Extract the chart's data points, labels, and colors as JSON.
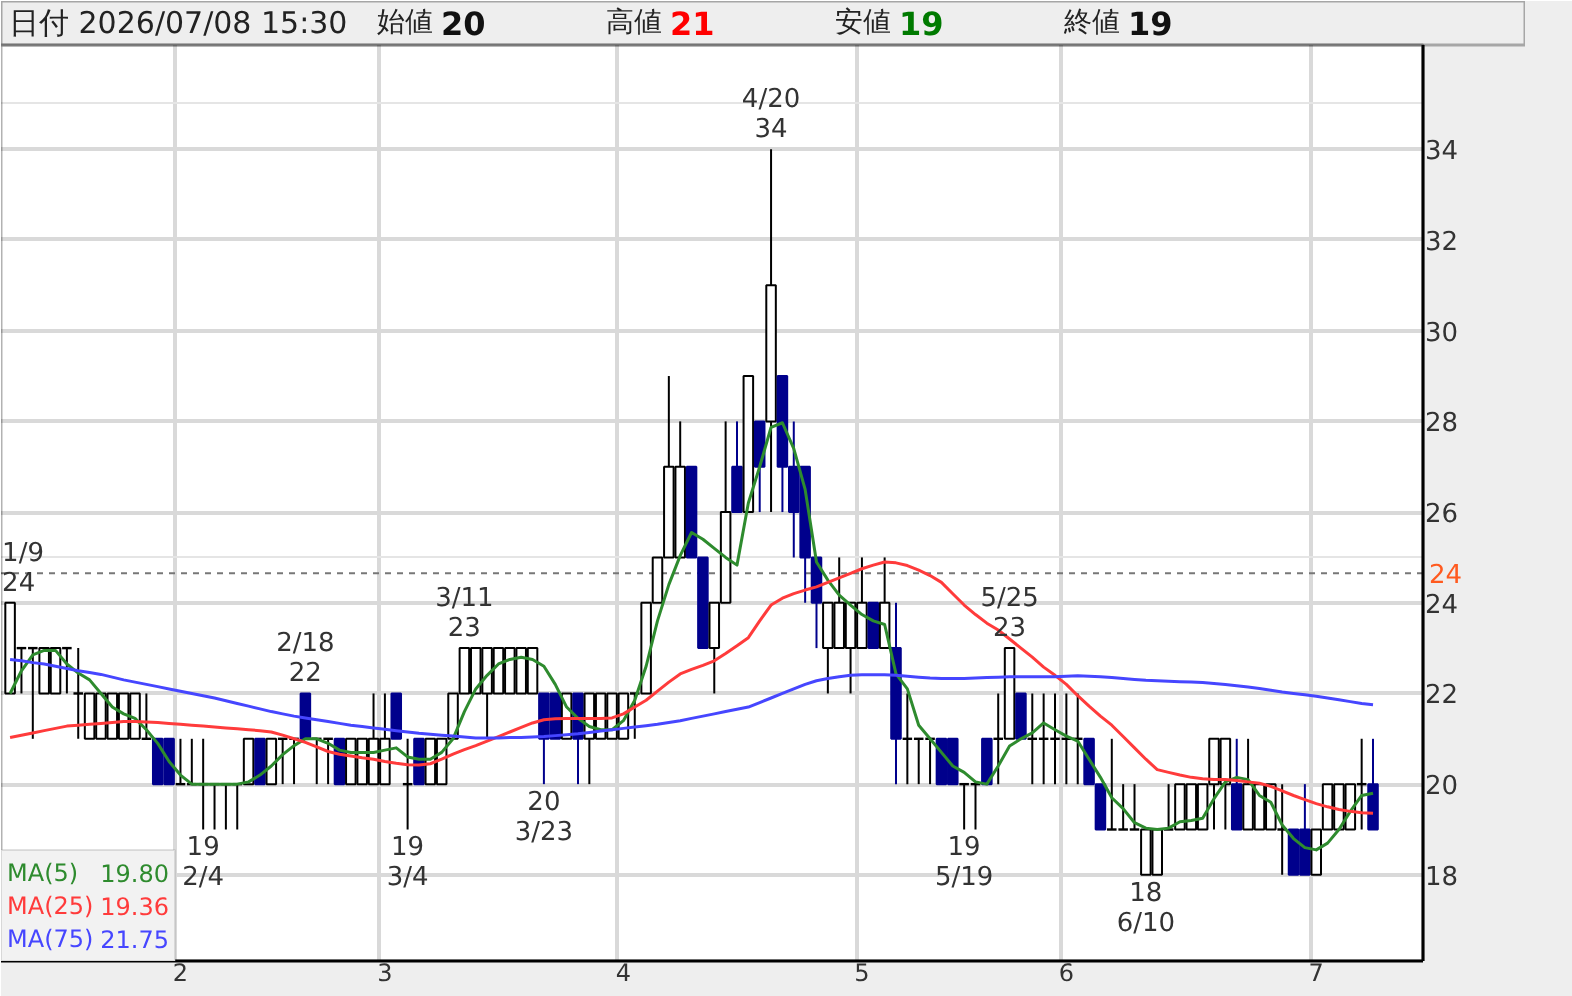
{
  "chart_data": {
    "type": "candlestick",
    "title": "日付 2026/07/08 15:30",
    "categories": [
      null,
      null,
      null,
      null,
      null,
      null,
      null,
      null,
      null,
      null,
      null,
      null,
      null,
      null,
      null,
      "2",
      null,
      null,
      null,
      null,
      null,
      null,
      null,
      null,
      null,
      null,
      null,
      null,
      null,
      null,
      null,
      null,
      null,
      "3",
      null,
      null,
      null,
      null,
      null,
      null,
      null,
      null,
      null,
      null,
      null,
      null,
      null,
      null,
      null,
      null,
      null,
      null,
      null,
      null,
      "4",
      null,
      null,
      null,
      null,
      null,
      null,
      null,
      null,
      null,
      null,
      null,
      null,
      null,
      null,
      null,
      null,
      null,
      null,
      null,
      null,
      "5",
      null,
      null,
      null,
      null,
      null,
      null,
      null,
      null,
      null,
      null,
      null,
      null,
      null,
      null,
      null,
      null,
      null,
      "6",
      null,
      null,
      null,
      null,
      null,
      null,
      null,
      null,
      null,
      null,
      null,
      null,
      null,
      null,
      null,
      null,
      null,
      null,
      null,
      null,
      null,
      "7",
      null,
      null,
      null,
      null,
      null
    ],
    "ohlc": [
      [
        22,
        24,
        22,
        24
      ],
      [
        23,
        23,
        22,
        23
      ],
      [
        23,
        23,
        21,
        23
      ],
      [
        22,
        23,
        22,
        23
      ],
      [
        22,
        23,
        22,
        23
      ],
      [
        23,
        23,
        22,
        23
      ],
      [
        22,
        23,
        21,
        22
      ],
      [
        21,
        22,
        21,
        22
      ],
      [
        21,
        22,
        21,
        22
      ],
      [
        21,
        22,
        21,
        22
      ],
      [
        21,
        22,
        21,
        22
      ],
      [
        21,
        22,
        21,
        22
      ],
      [
        21,
        22,
        21,
        21
      ],
      [
        21,
        21,
        20,
        20
      ],
      [
        21,
        21,
        20,
        20
      ],
      [
        20,
        21,
        20,
        20
      ],
      [
        20,
        21,
        20,
        20
      ],
      [
        20,
        21,
        19,
        20
      ],
      [
        20,
        20,
        19,
        20
      ],
      [
        20,
        20,
        19,
        20
      ],
      [
        20,
        20,
        19,
        20
      ],
      [
        20,
        21,
        20,
        21
      ],
      [
        21,
        21,
        20,
        20
      ],
      [
        20,
        21,
        20,
        21
      ],
      [
        21,
        21,
        20,
        21
      ],
      [
        21,
        21,
        20,
        21
      ],
      [
        22,
        22,
        21,
        21
      ],
      [
        21,
        21,
        20,
        21
      ],
      [
        21,
        21,
        20,
        21
      ],
      [
        21,
        21,
        20,
        20
      ],
      [
        20,
        21,
        20,
        21
      ],
      [
        20,
        21,
        20,
        21
      ],
      [
        20,
        22,
        20,
        21
      ],
      [
        20,
        22,
        20,
        21
      ],
      [
        22,
        22,
        21,
        21
      ],
      [
        20,
        21,
        19,
        20
      ],
      [
        21,
        21,
        20,
        20
      ],
      [
        20,
        21,
        20,
        21
      ],
      [
        20,
        21,
        20,
        21
      ],
      [
        21,
        22,
        21,
        22
      ],
      [
        22,
        23,
        22,
        23
      ],
      [
        22,
        23,
        22,
        23
      ],
      [
        22,
        23,
        21,
        23
      ],
      [
        22,
        23,
        22,
        23
      ],
      [
        22,
        23,
        22,
        23
      ],
      [
        22,
        23,
        22,
        23
      ],
      [
        22,
        23,
        22,
        23
      ],
      [
        22,
        22,
        20,
        21
      ],
      [
        22,
        22,
        21,
        21
      ],
      [
        21,
        22,
        21,
        22
      ],
      [
        22,
        22,
        20,
        21
      ],
      [
        21,
        22,
        20,
        22
      ],
      [
        21,
        22,
        21,
        22
      ],
      [
        21,
        22,
        21,
        22
      ],
      [
        21,
        22,
        21,
        22
      ],
      [
        22,
        22,
        21,
        22
      ],
      [
        22,
        24,
        22,
        24
      ],
      [
        24,
        25,
        24,
        25
      ],
      [
        25,
        29,
        25,
        27
      ],
      [
        25,
        28,
        25,
        27
      ],
      [
        27,
        27,
        25,
        25
      ],
      [
        25,
        25,
        23,
        23
      ],
      [
        23,
        24,
        22,
        24
      ],
      [
        24,
        28,
        24,
        26
      ],
      [
        27,
        28,
        26,
        26
      ],
      [
        26,
        29,
        26,
        29
      ],
      [
        28,
        28,
        26,
        27
      ],
      [
        28,
        34,
        26,
        31
      ],
      [
        29,
        29,
        26,
        27
      ],
      [
        27,
        28,
        25,
        26
      ],
      [
        27,
        27,
        24,
        25
      ],
      [
        25,
        25,
        23,
        24
      ],
      [
        23,
        24,
        22,
        24
      ],
      [
        23,
        25,
        23,
        24
      ],
      [
        23,
        24,
        22,
        24
      ],
      [
        23,
        25,
        23,
        24
      ],
      [
        24,
        24,
        23,
        23
      ],
      [
        23,
        25,
        23,
        24
      ],
      [
        23,
        24,
        20,
        21
      ],
      [
        21,
        22,
        20,
        21
      ],
      [
        21,
        21,
        20,
        21
      ],
      [
        21,
        21,
        20,
        21
      ],
      [
        21,
        21,
        20,
        20
      ],
      [
        21,
        21,
        20,
        20
      ],
      [
        20,
        20,
        19,
        20
      ],
      [
        20,
        20,
        19,
        20
      ],
      [
        21,
        21,
        20,
        20
      ],
      [
        21,
        22,
        20,
        21
      ],
      [
        21,
        23,
        21,
        23
      ],
      [
        22,
        22,
        21,
        21
      ],
      [
        21,
        22,
        20,
        21
      ],
      [
        21,
        22,
        20,
        21
      ],
      [
        21,
        22,
        20,
        21
      ],
      [
        21,
        22,
        20,
        21
      ],
      [
        21,
        22,
        20,
        21
      ],
      [
        21,
        21,
        20,
        20
      ],
      [
        20,
        20,
        19,
        19
      ],
      [
        19,
        21,
        19,
        19
      ],
      [
        19,
        20,
        19,
        19
      ],
      [
        19,
        20,
        19,
        19
      ],
      [
        18,
        19,
        18,
        19
      ],
      [
        18,
        19,
        18,
        19
      ],
      [
        19,
        20,
        19,
        19
      ],
      [
        19,
        20,
        19,
        20
      ],
      [
        19,
        20,
        19,
        20
      ],
      [
        19,
        20,
        19,
        20
      ],
      [
        20,
        21,
        19,
        21
      ],
      [
        20,
        21,
        19,
        21
      ],
      [
        20,
        21,
        19,
        19
      ],
      [
        19,
        21,
        19,
        20
      ],
      [
        19,
        20,
        19,
        20
      ],
      [
        19,
        20,
        19,
        20
      ],
      [
        19,
        20,
        18,
        19
      ],
      [
        19,
        19,
        18,
        18
      ],
      [
        19,
        20,
        18,
        18
      ],
      [
        18,
        19,
        18,
        19
      ],
      [
        19,
        20,
        19,
        20
      ],
      [
        19,
        20,
        19,
        20
      ],
      [
        19,
        20,
        19,
        20
      ],
      [
        20,
        21,
        19,
        20
      ],
      [
        20,
        21,
        19,
        19
      ]
    ],
    "series": [
      {
        "name": "MA(5)",
        "type": "line",
        "color": "#2e8b2e",
        "values": [
          22.0,
          22.5,
          22.85,
          22.95,
          22.95,
          22.65,
          22.45,
          22.3,
          22.0,
          21.7,
          21.55,
          21.45,
          21.2,
          20.9,
          20.5,
          20.2,
          20.0,
          20.0,
          20.0,
          20.0,
          20.0,
          20.05,
          20.2,
          20.4,
          20.65,
          20.85,
          21.0,
          21.0,
          20.9,
          20.75,
          20.7,
          20.7,
          20.7,
          20.75,
          20.8,
          20.6,
          20.55,
          20.55,
          20.7,
          21.0,
          21.6,
          22.1,
          22.4,
          22.65,
          22.75,
          22.8,
          22.75,
          22.6,
          22.2,
          21.7,
          21.45,
          21.27,
          21.2,
          21.2,
          21.4,
          21.85,
          22.6,
          23.6,
          24.4,
          25.04,
          25.55,
          25.4,
          25.2,
          25.0,
          24.83,
          26.2,
          27.0,
          27.87,
          27.97,
          27.4,
          26.5,
          24.9,
          24.5,
          24.17,
          23.95,
          23.74,
          23.6,
          23.52,
          22.43,
          22.1,
          21.3,
          21.0,
          20.7,
          20.4,
          20.26,
          20.05,
          20.0,
          20.4,
          20.84,
          21.0,
          21.13,
          21.35,
          21.2,
          21.06,
          20.95,
          20.55,
          20.15,
          19.7,
          19.46,
          19.15,
          19.03,
          19.0,
          19.03,
          19.17,
          19.2,
          19.25,
          19.68,
          20.05,
          20.15,
          20.1,
          19.75,
          19.6,
          19.1,
          18.8,
          18.6,
          18.55,
          18.7,
          19.0,
          19.4,
          19.75,
          19.8
        ]
      },
      {
        "name": "MA(25)",
        "type": "line",
        "color": "#ff3b3b",
        "values": [
          21.03,
          21.08,
          21.13,
          21.18,
          21.23,
          21.28,
          21.3,
          21.32,
          21.34,
          21.36,
          21.38,
          21.38,
          21.37,
          21.36,
          21.34,
          21.32,
          21.3,
          21.28,
          21.26,
          21.24,
          21.22,
          21.2,
          21.18,
          21.15,
          21.08,
          21.0,
          20.92,
          20.82,
          20.72,
          20.66,
          20.62,
          20.58,
          20.55,
          20.5,
          20.46,
          20.43,
          20.42,
          20.45,
          20.55,
          20.66,
          20.76,
          20.85,
          20.95,
          21.05,
          21.15,
          21.25,
          21.35,
          21.42,
          21.44,
          21.45,
          21.45,
          21.45,
          21.45,
          21.46,
          21.55,
          21.7,
          21.85,
          22.05,
          22.25,
          22.43,
          22.53,
          22.62,
          22.72,
          22.88,
          23.05,
          23.23,
          23.6,
          23.95,
          24.1,
          24.2,
          24.28,
          24.35,
          24.45,
          24.55,
          24.65,
          24.75,
          24.83,
          24.9,
          24.88,
          24.82,
          24.72,
          24.6,
          24.45,
          24.2,
          23.95,
          23.74,
          23.55,
          23.4,
          23.2,
          23.0,
          22.8,
          22.58,
          22.4,
          22.2,
          21.95,
          21.72,
          21.5,
          21.3,
          21.05,
          20.8,
          20.55,
          20.32,
          20.26,
          20.2,
          20.15,
          20.12,
          20.1,
          20.1,
          20.08,
          20.05,
          20.02,
          19.95,
          19.85,
          19.75,
          19.66,
          19.57,
          19.5,
          19.44,
          19.4,
          19.37,
          19.36
        ]
      },
      {
        "name": "MA(75)",
        "type": "line",
        "color": "#4646ff",
        "values": [
          22.75,
          22.72,
          22.68,
          22.65,
          22.6,
          22.55,
          22.5,
          22.46,
          22.42,
          22.36,
          22.3,
          22.25,
          22.2,
          22.15,
          22.1,
          22.05,
          22.0,
          21.95,
          21.9,
          21.84,
          21.78,
          21.72,
          21.66,
          21.6,
          21.55,
          21.5,
          21.46,
          21.42,
          21.38,
          21.34,
          21.3,
          21.27,
          21.24,
          21.21,
          21.18,
          21.15,
          21.12,
          21.1,
          21.08,
          21.06,
          21.04,
          21.02,
          21.02,
          21.02,
          21.03,
          21.03,
          21.04,
          21.05,
          21.07,
          21.09,
          21.11,
          21.14,
          21.17,
          21.2,
          21.23,
          21.26,
          21.29,
          21.32,
          21.36,
          21.4,
          21.45,
          21.5,
          21.55,
          21.6,
          21.65,
          21.7,
          21.8,
          21.9,
          22.0,
          22.1,
          22.2,
          22.28,
          22.33,
          22.37,
          22.4,
          22.41,
          22.41,
          22.41,
          22.4,
          22.38,
          22.36,
          22.34,
          22.33,
          22.33,
          22.33,
          22.34,
          22.35,
          22.36,
          22.37,
          22.37,
          22.37,
          22.37,
          22.37,
          22.38,
          22.39,
          22.38,
          22.37,
          22.35,
          22.33,
          22.31,
          22.29,
          22.28,
          22.27,
          22.26,
          22.25,
          22.24,
          22.22,
          22.2,
          22.17,
          22.14,
          22.11,
          22.07,
          22.03,
          22.0,
          21.97,
          21.94,
          21.9,
          21.86,
          21.82,
          21.78,
          21.75
        ]
      }
    ],
    "ylim": [
      16.1,
      36.3
    ],
    "yticks": [
      18,
      20,
      22,
      24,
      26,
      28,
      30,
      32,
      34
    ],
    "grid": true,
    "legend": "bottom left",
    "ref_lines": [
      {
        "axis": "y",
        "value": 24.65,
        "line_style": "dashed"
      }
    ],
    "annotations": [
      "始値 20",
      "高値 21",
      "安値 19",
      "終値 19",
      "19.80",
      "19.36",
      "21.75",
      "24",
      {
        "text": "1/9\n24",
        "y": 24
      },
      {
        "text": "19\n2/4",
        "y": 19
      },
      {
        "text": "2/18\n22",
        "y": 22
      },
      {
        "text": "19\n3/4",
        "y": 19
      },
      {
        "text": "3/11\n23",
        "y": 23
      },
      {
        "text": "20\n3/23",
        "y": 20
      },
      {
        "text": "4/20\n34",
        "y": 34
      },
      {
        "text": "19\n5/19",
        "y": 19
      },
      {
        "text": "5/25\n23",
        "y": 23
      },
      {
        "text": "18\n6/10",
        "y": 18
      }
    ]
  }
}
